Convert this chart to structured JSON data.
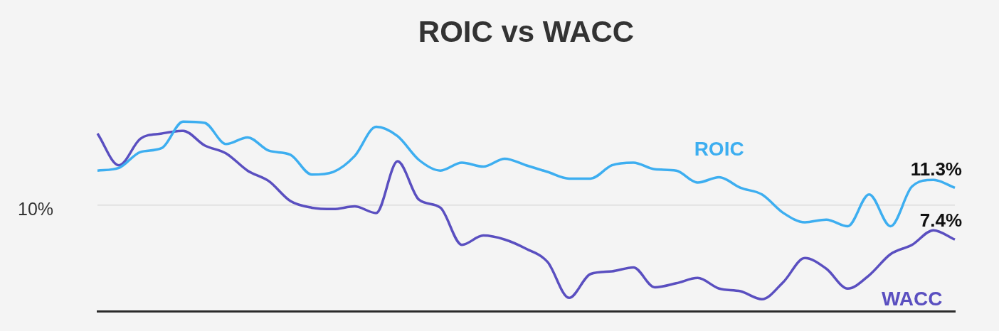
{
  "chart_data": {
    "type": "line",
    "title": "ROIC vs WACC",
    "categories": [
      null,
      null,
      null,
      null,
      null,
      null,
      null,
      null,
      null,
      null,
      null,
      null,
      null,
      null,
      null,
      null,
      null,
      null,
      null,
      null,
      null,
      null,
      null,
      null,
      null,
      null,
      null,
      null,
      null,
      null,
      null,
      null,
      null,
      null,
      null,
      null,
      null,
      null,
      null,
      null,
      null
    ],
    "series": [
      {
        "name": "ROIC",
        "color": "#3daef0",
        "values": [
          12.6,
          12.8,
          14.0,
          14.3,
          16.3,
          16.2,
          14.6,
          15.1,
          14.1,
          13.8,
          12.3,
          12.5,
          13.7,
          15.9,
          15.2,
          13.4,
          12.6,
          13.2,
          12.9,
          13.5,
          13.0,
          12.5,
          12.0,
          12.0,
          13.0,
          13.2,
          12.7,
          12.6,
          11.7,
          12.1,
          11.3,
          10.8,
          9.4,
          8.7,
          8.9,
          8.4,
          10.8,
          8.4,
          11.4,
          11.9,
          11.3
        ],
        "value_labels": [
          null,
          null,
          null,
          null,
          null,
          null,
          null,
          null,
          null,
          null,
          null,
          null,
          null,
          null,
          null,
          null,
          null,
          null,
          null,
          null,
          null,
          null,
          null,
          null,
          null,
          null,
          null,
          null,
          null,
          null,
          null,
          null,
          null,
          null,
          null,
          null,
          null,
          null,
          null,
          null,
          "11.3%"
        ]
      },
      {
        "name": "WACC",
        "color": "#5a4fc0",
        "values": [
          15.4,
          13.0,
          15.0,
          15.4,
          15.6,
          14.5,
          13.9,
          12.6,
          11.8,
          10.3,
          9.8,
          9.7,
          9.9,
          9.4,
          13.3,
          10.4,
          9.8,
          7.0,
          7.7,
          7.4,
          6.7,
          5.7,
          3.0,
          4.8,
          5.0,
          5.3,
          3.8,
          4.1,
          4.5,
          3.7,
          3.5,
          2.9,
          4.2,
          6.0,
          5.2,
          3.7,
          4.7,
          6.3,
          7.0,
          8.1,
          7.4
        ],
        "value_labels": [
          null,
          null,
          null,
          null,
          null,
          null,
          null,
          null,
          null,
          null,
          null,
          null,
          null,
          null,
          null,
          null,
          null,
          null,
          null,
          null,
          null,
          null,
          null,
          null,
          null,
          null,
          null,
          null,
          null,
          null,
          null,
          null,
          null,
          null,
          null,
          null,
          null,
          null,
          null,
          null,
          "7.4%"
        ]
      }
    ],
    "ref_lines": [
      {
        "axis": "y",
        "value": 10,
        "label": "10%",
        "color": "#e2e2e2"
      }
    ],
    "legend": false,
    "tick_labels": false,
    "marker": "none",
    "line_style": "solid"
  }
}
